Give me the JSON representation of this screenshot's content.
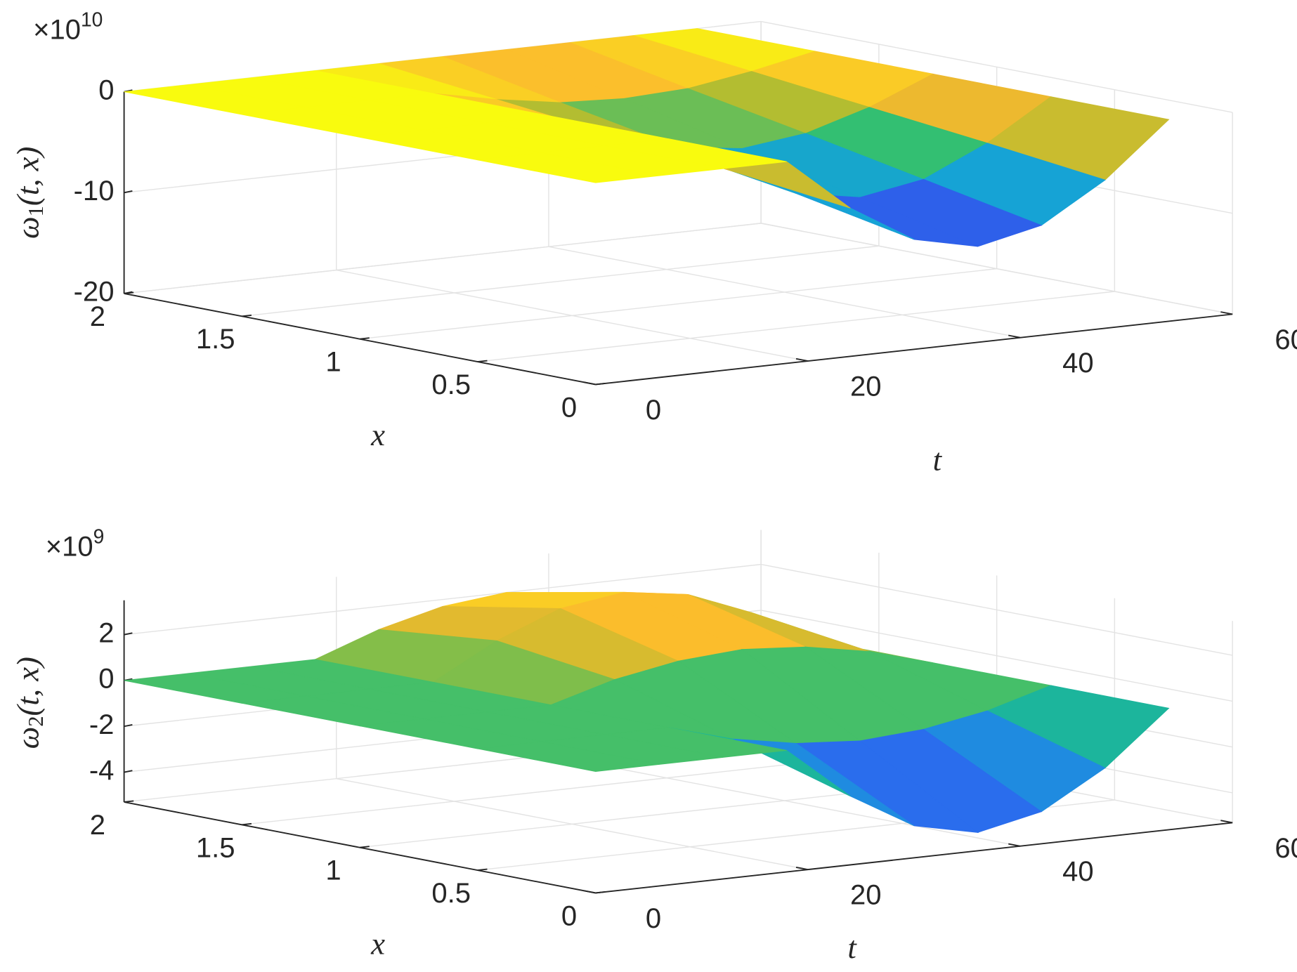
{
  "chart_data": [
    {
      "type": "surface",
      "colormap": "parula",
      "grid": true,
      "z_multiplier": "×10",
      "z_multiplier_exponent": "10",
      "z_label": {
        "symbol": "ω",
        "subscript": "1",
        "args": "(t, x)"
      },
      "t_label": "t",
      "x_label": "x",
      "t": [
        0,
        6,
        12,
        18,
        24,
        30,
        36,
        42,
        48,
        54
      ],
      "x": [
        0,
        0.5,
        1,
        1.5,
        2
      ],
      "z": [
        [
          0,
          0,
          0,
          0,
          -5.3,
          -9.1,
          -10.5,
          -9.1,
          -5.3,
          0
        ],
        [
          0,
          0,
          0,
          0,
          -3.9,
          -6.8,
          -7.9,
          -6.8,
          -3.9,
          0
        ],
        [
          0,
          0,
          0,
          0,
          -2.6,
          -4.5,
          -5.3,
          -4.5,
          -2.6,
          0
        ],
        [
          0,
          0,
          0,
          0,
          -1.3,
          -2.3,
          -2.6,
          -2.3,
          -1.3,
          0
        ],
        [
          0,
          0,
          0,
          0,
          0,
          0,
          0,
          0,
          0,
          0
        ]
      ],
      "tlim": [
        0,
        60
      ],
      "tticks": [
        0,
        20,
        40,
        60
      ],
      "xlim": [
        0,
        2
      ],
      "xticks": [
        0,
        0.5,
        1,
        1.5,
        2
      ],
      "zlim": [
        -20,
        0
      ],
      "zticks": [
        -20,
        -10,
        0
      ]
    },
    {
      "type": "surface",
      "colormap": "parula",
      "grid": true,
      "z_multiplier": "×10",
      "z_multiplier_exponent": "9",
      "z_label": {
        "symbol": "ω",
        "subscript": "2",
        "args": "(t, x)"
      },
      "t_label": "t",
      "x_label": "x",
      "t": [
        0,
        6,
        12,
        18,
        24,
        30,
        36,
        42,
        48,
        54
      ],
      "x": [
        0,
        0.5,
        1,
        1.5,
        2
      ],
      "z": [
        [
          0,
          0,
          0,
          0,
          -2.3,
          -3.9,
          -4.5,
          -3.9,
          -2.3,
          0
        ],
        [
          0,
          0,
          0,
          0,
          -0.8,
          -1.3,
          -1.5,
          -1.3,
          -0.8,
          0
        ],
        [
          0,
          0,
          0,
          0,
          0.8,
          1.3,
          1.5,
          1.3,
          0.8,
          0
        ],
        [
          0,
          0,
          0,
          0,
          1.5,
          2.6,
          3,
          2.6,
          1.5,
          0
        ],
        [
          0,
          0,
          0,
          0,
          1,
          1.7,
          2,
          1.7,
          1,
          0
        ]
      ],
      "tlim": [
        0,
        60
      ],
      "tticks": [
        0,
        20,
        40,
        60
      ],
      "xlim": [
        0,
        2
      ],
      "xticks": [
        0,
        0.5,
        1,
        1.5,
        2
      ],
      "zlim": [
        -5.3,
        3.5
      ],
      "zticks": [
        -4,
        -2,
        0,
        2
      ]
    }
  ]
}
